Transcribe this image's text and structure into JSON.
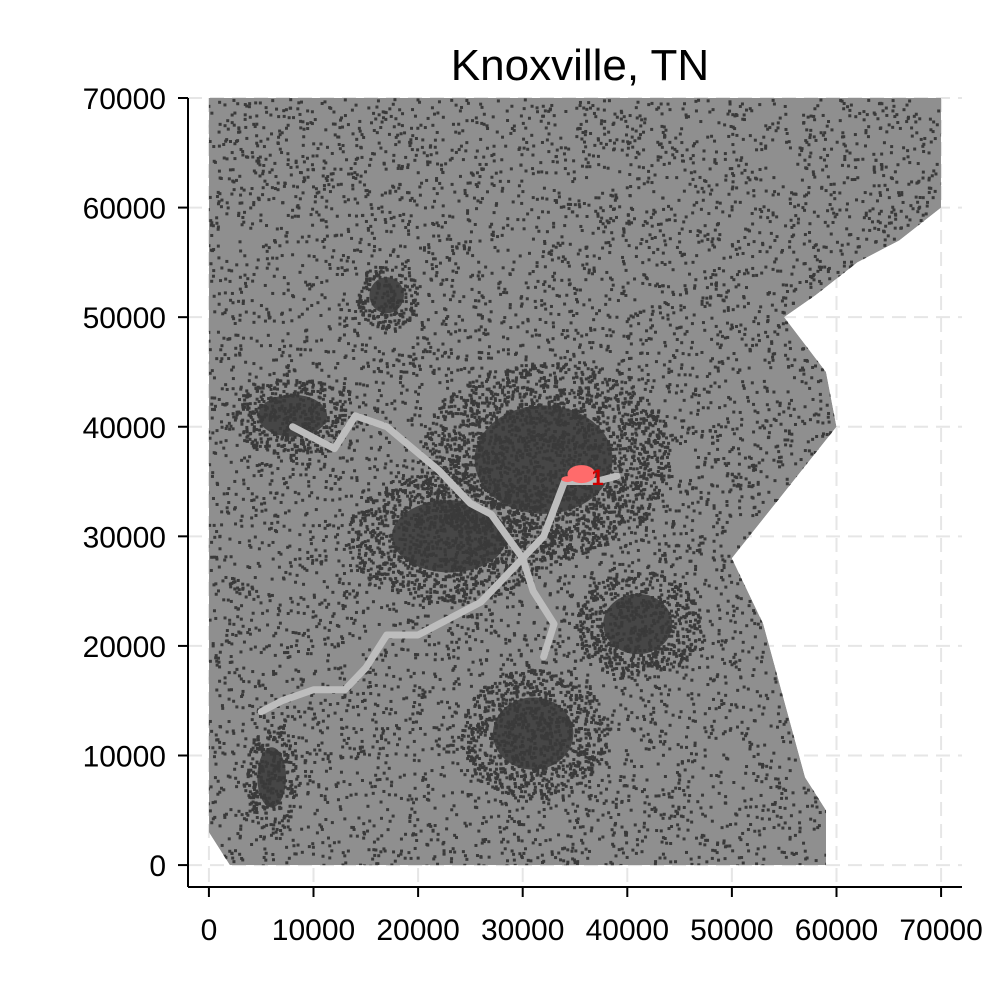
{
  "chart_data": {
    "type": "heatmap",
    "title": "Knoxville, TN",
    "xlabel": "",
    "ylabel": "",
    "xlim": [
      -2000,
      72000
    ],
    "ylim": [
      -2000,
      70000
    ],
    "x_ticks": [
      0,
      10000,
      20000,
      30000,
      40000,
      50000,
      60000,
      70000
    ],
    "y_ticks": [
      0,
      10000,
      20000,
      30000,
      40000,
      50000,
      60000,
      70000
    ],
    "x_tick_labels": [
      "0",
      "10000",
      "20000",
      "30000",
      "40000",
      "50000",
      "60000",
      "70000"
    ],
    "y_tick_labels": [
      "0",
      "10000",
      "20000",
      "30000",
      "40000",
      "50000",
      "60000",
      "70000"
    ],
    "grid": true,
    "colors": {
      "land_cover": "#8f8f8f",
      "developed": "#3a3a3a",
      "water": "#bdbdbd",
      "highlight": "#ff6b6b",
      "grid": "#e6e6e6"
    },
    "region_outline": [
      [
        0,
        70000
      ],
      [
        70000,
        70000
      ],
      [
        70000,
        60000
      ],
      [
        66000,
        57000
      ],
      [
        62000,
        55000
      ],
      [
        58000,
        52000
      ],
      [
        55000,
        50000
      ],
      [
        59000,
        45000
      ],
      [
        60000,
        40000
      ],
      [
        55000,
        34000
      ],
      [
        50000,
        28000
      ],
      [
        53000,
        22000
      ],
      [
        55000,
        15000
      ],
      [
        57000,
        8000
      ],
      [
        59000,
        5000
      ],
      [
        59000,
        0
      ],
      [
        2000,
        0
      ],
      [
        0,
        3000
      ]
    ],
    "developed_clusters": [
      {
        "x": 32000,
        "y": 37000,
        "rx": 12000,
        "ry": 9000
      },
      {
        "x": 23000,
        "y": 30000,
        "rx": 10000,
        "ry": 6000
      },
      {
        "x": 31000,
        "y": 12000,
        "rx": 7000,
        "ry": 6000
      },
      {
        "x": 8000,
        "y": 41000,
        "rx": 6000,
        "ry": 3500
      },
      {
        "x": 17000,
        "y": 52000,
        "rx": 3000,
        "ry": 3000
      },
      {
        "x": 6000,
        "y": 8000,
        "rx": 2500,
        "ry": 5000
      },
      {
        "x": 41000,
        "y": 22000,
        "rx": 6000,
        "ry": 5000
      }
    ],
    "water_features": [
      [
        [
          8000,
          40000
        ],
        [
          12000,
          38000
        ],
        [
          14000,
          41000
        ],
        [
          17000,
          40000
        ],
        [
          22000,
          36000
        ],
        [
          25000,
          33000
        ],
        [
          27000,
          32000
        ],
        [
          30000,
          28000
        ],
        [
          32000,
          30000
        ],
        [
          34000,
          35000
        ],
        [
          37000,
          35000
        ],
        [
          39000,
          35500
        ]
      ],
      [
        [
          30000,
          28000
        ],
        [
          28000,
          26000
        ],
        [
          26000,
          24000
        ],
        [
          24000,
          23000
        ],
        [
          22000,
          22000
        ],
        [
          20000,
          21000
        ],
        [
          17000,
          21000
        ],
        [
          15000,
          18000
        ],
        [
          13000,
          16000
        ],
        [
          10000,
          16000
        ],
        [
          7000,
          15000
        ],
        [
          5000,
          14000
        ]
      ],
      [
        [
          30000,
          28000
        ],
        [
          31000,
          25000
        ],
        [
          33000,
          22000
        ],
        [
          32000,
          19000
        ]
      ]
    ],
    "highlights": [
      {
        "label": "1",
        "x": 36000,
        "y": 35500
      }
    ]
  }
}
